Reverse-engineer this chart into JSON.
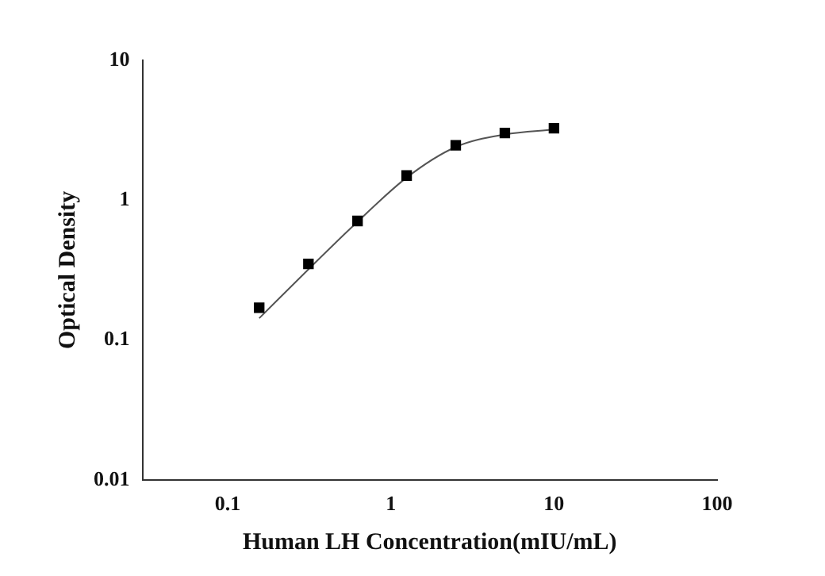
{
  "chart_data": {
    "type": "scatter",
    "xlabel": "Human LH Concentration(mIU/mL)",
    "ylabel": "Optical Density",
    "log": "xy",
    "xlim": [
      0.03,
      100
    ],
    "xticks": [
      0.1,
      1,
      10,
      100
    ],
    "ylim": [
      0.01,
      10
    ],
    "yticks": [
      0.01,
      0.1,
      1,
      10
    ],
    "grid": false,
    "legend": false,
    "marker": "square",
    "series": [
      {
        "color": "#000000",
        "x": [
          0.156,
          0.3125,
          0.625,
          1.25,
          2.5,
          5,
          10
        ],
        "values": [
          0.17,
          0.35,
          0.71,
          1.5,
          2.47,
          3.02,
          3.27
        ]
      },
      {
        "type": "line",
        "color": "#555555",
        "marker": "none",
        "line_style": "solid",
        "x": [
          0.156,
          0.3125,
          0.625,
          1.25,
          2.5,
          5,
          10
        ],
        "values": [
          0.143,
          0.32,
          0.7,
          1.45,
          2.4,
          2.95,
          3.2
        ]
      }
    ]
  }
}
